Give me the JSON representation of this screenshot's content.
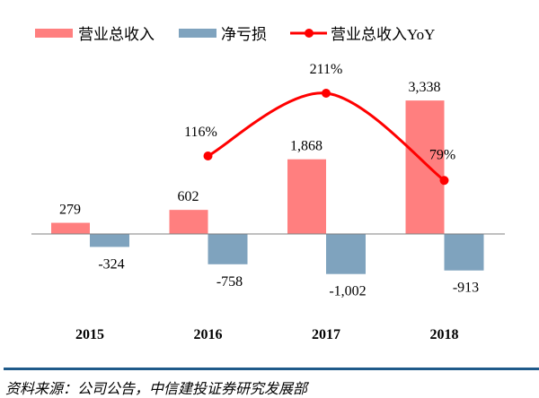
{
  "chart_data": {
    "type": "bar",
    "categories": [
      "2015",
      "2016",
      "2017",
      "2018"
    ],
    "series": [
      {
        "name": "营业总收入",
        "kind": "bar",
        "axis": "left",
        "color": "#ff7f7f",
        "values": [
          279,
          602,
          1868,
          3338
        ],
        "labels": [
          "279",
          "602",
          "1,868",
          "3,338"
        ]
      },
      {
        "name": "净亏损",
        "kind": "bar",
        "axis": "left",
        "color": "#7fa3be",
        "values": [
          -324,
          -758,
          -1002,
          -913
        ],
        "labels": [
          "-324",
          "-758",
          "-1,002",
          "-913"
        ]
      },
      {
        "name": "营业总收入YoY",
        "kind": "line",
        "axis": "right",
        "color": "#ff0000",
        "smooth": true,
        "marker": "circle",
        "values": [
          null,
          116,
          211,
          79
        ],
        "labels": [
          "",
          "116%",
          "211%",
          "79%"
        ]
      }
    ],
    "legend_position": "top",
    "grid": false,
    "y_axis_visible": false
  },
  "source": "资料来源：公司公告，中信建投证券研究发展部"
}
